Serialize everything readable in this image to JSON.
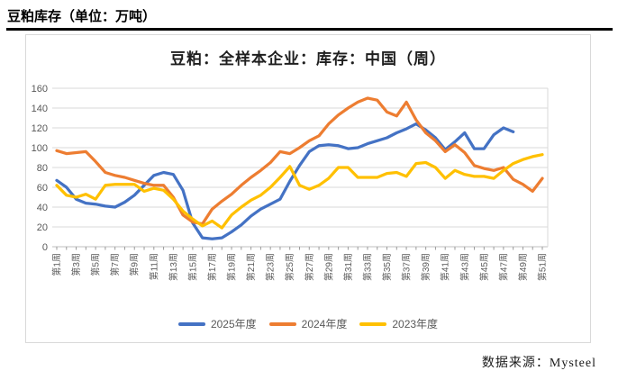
{
  "header": {
    "title": "豆粕库存（单位：万吨）"
  },
  "footer": {
    "source": "数据来源：Mysteel"
  },
  "chart_data": {
    "type": "line",
    "title": "豆粕：全样本企业：库存：中国（周）",
    "xlabel": "",
    "ylabel": "",
    "ylim": [
      0,
      160
    ],
    "ytick_step": 20,
    "yticks": [
      0,
      20,
      40,
      60,
      80,
      100,
      120,
      140,
      160
    ],
    "n_categories": 51,
    "x_tick_labels": [
      "第1周",
      "第3周",
      "第5周",
      "第7周",
      "第9周",
      "第11周",
      "第13周",
      "第15周",
      "第17周",
      "第19周",
      "第21周",
      "第23周",
      "第25周",
      "第27周",
      "第29周",
      "第31周",
      "第33周",
      "第35周",
      "第37周",
      "第39周",
      "第41周",
      "第43周",
      "第45周",
      "第47周",
      "第49周",
      "第51周"
    ],
    "grid": true,
    "legend_position": "bottom",
    "gridline_color": "#d9d9d9",
    "axis_color": "#bfbfbf",
    "tick_text_color": "#595959",
    "series": [
      {
        "name": "2025年度",
        "color": "#4472C4",
        "values": [
          67,
          60,
          48,
          44,
          43,
          41,
          40,
          45,
          52,
          62,
          72,
          75,
          73,
          57,
          24,
          9,
          8,
          9,
          15,
          22,
          31,
          38,
          43,
          48,
          66,
          82,
          96,
          102,
          103,
          102,
          99,
          100,
          104,
          107,
          110,
          115,
          119,
          124,
          118,
          110,
          98,
          106,
          115,
          99,
          99,
          113,
          120,
          116
        ]
      },
      {
        "name": "2024年度",
        "color": "#ED7D31",
        "values": [
          97,
          94,
          95,
          96,
          86,
          75,
          72,
          70,
          67,
          64,
          62,
          62,
          50,
          32,
          25,
          23,
          38,
          46,
          53,
          62,
          70,
          77,
          85,
          96,
          94,
          100,
          107,
          112,
          124,
          133,
          140,
          146,
          150,
          148,
          136,
          132,
          146,
          128,
          115,
          107,
          96,
          103,
          95,
          82,
          79,
          77,
          80,
          68,
          63,
          56,
          69
        ]
      },
      {
        "name": "2023年度",
        "color": "#FFC000",
        "values": [
          62,
          52,
          50,
          53,
          48,
          62,
          63,
          63,
          63,
          56,
          59,
          57,
          48,
          36,
          28,
          21,
          26,
          19,
          32,
          40,
          47,
          52,
          60,
          70,
          81,
          62,
          58,
          62,
          69,
          80,
          80,
          70,
          70,
          70,
          74,
          75,
          71,
          84,
          85,
          80,
          69,
          77,
          73,
          71,
          71,
          69,
          77,
          84,
          88,
          91,
          93
        ]
      }
    ]
  }
}
